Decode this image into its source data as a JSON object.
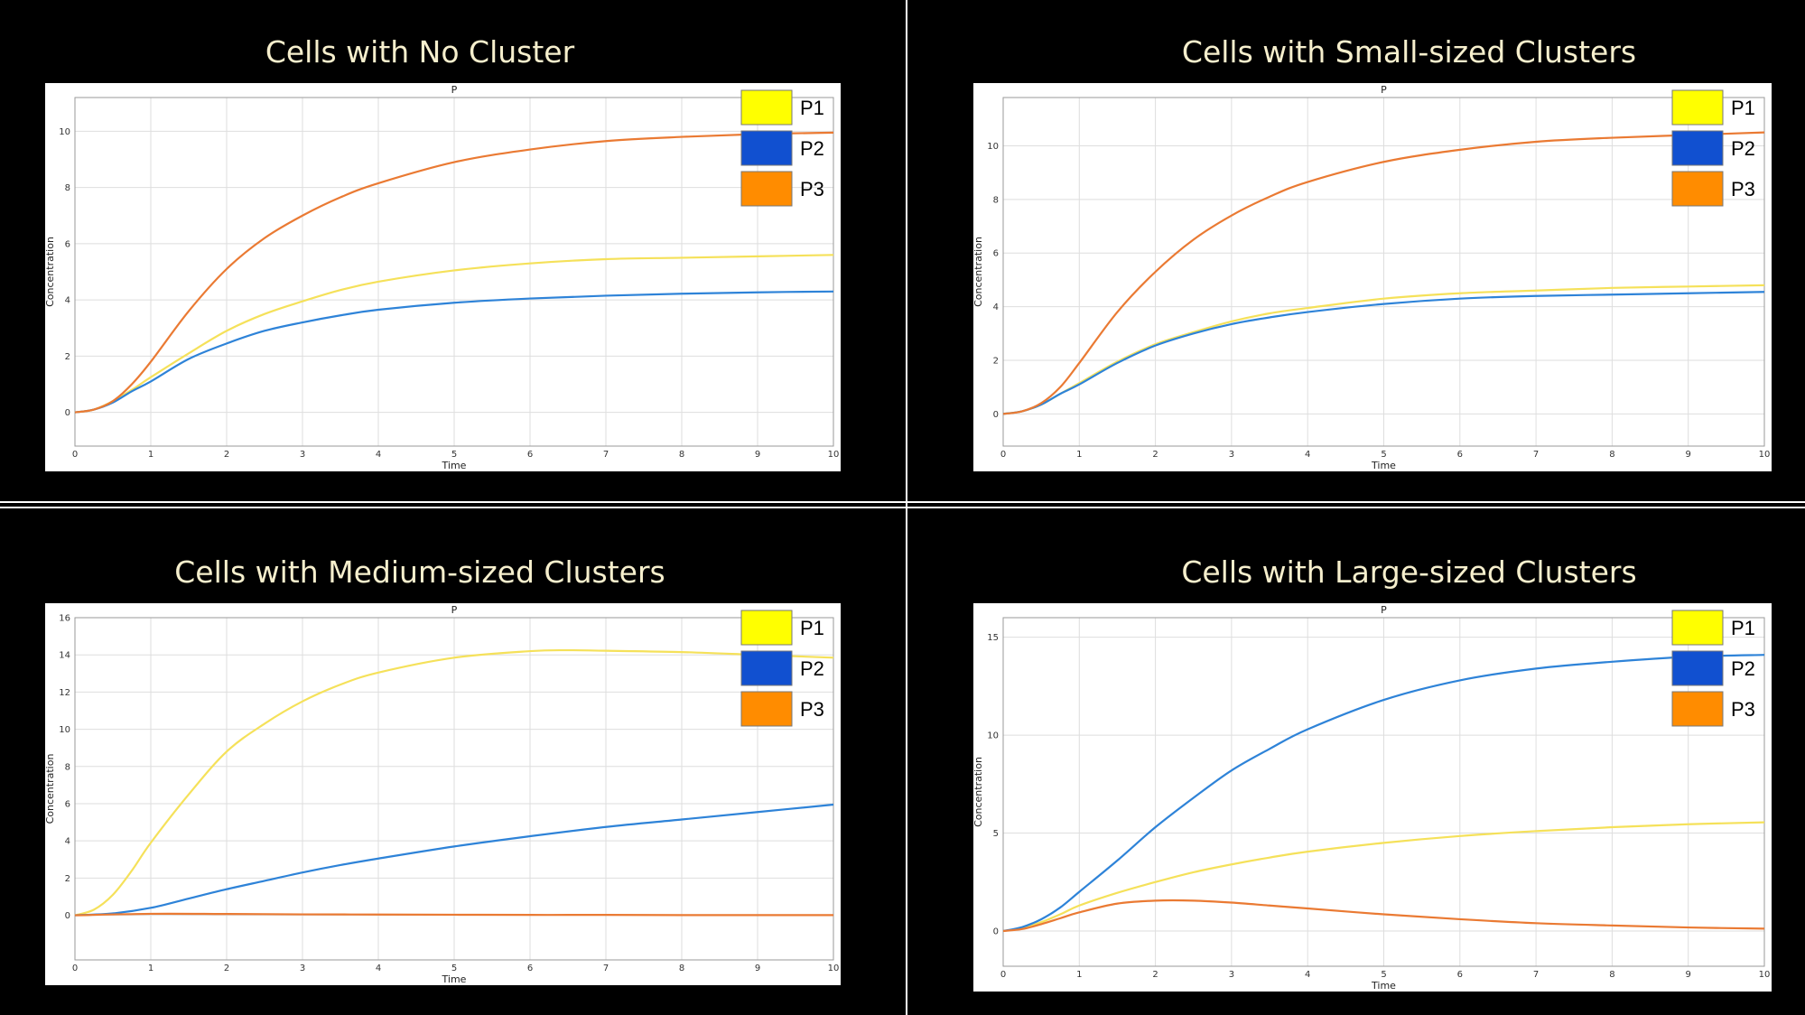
{
  "chart_data": [
    {
      "type": "line",
      "panel_title": "Cells with No Cluster",
      "title": "P",
      "xlabel": "Time",
      "ylabel": "Concentration",
      "xlim": [
        0,
        10
      ],
      "ylim": [
        -1.2,
        11.2
      ],
      "xticks": [
        0,
        1,
        2,
        3,
        4,
        5,
        6,
        7,
        8,
        9,
        10
      ],
      "yticks": [
        0,
        2,
        4,
        6,
        8,
        10
      ],
      "grid": true,
      "legend_position": "top-right",
      "legend": [
        {
          "label": "P1",
          "swatch": "#ffff00"
        },
        {
          "label": "P2",
          "swatch": "#1150d0"
        },
        {
          "label": "P3",
          "swatch": "#ff8c00"
        }
      ],
      "series": [
        {
          "name": "P1",
          "color": "#f5e15a",
          "x": [
            0,
            0.25,
            0.5,
            0.75,
            1,
            1.5,
            2,
            2.5,
            3,
            3.5,
            4,
            5,
            6,
            7,
            8,
            9,
            10
          ],
          "y": [
            0,
            0.1,
            0.4,
            0.8,
            1.25,
            2.1,
            2.9,
            3.5,
            3.95,
            4.35,
            4.65,
            5.05,
            5.3,
            5.45,
            5.5,
            5.55,
            5.6
          ]
        },
        {
          "name": "P2",
          "color": "#2e83d8",
          "x": [
            0,
            0.25,
            0.5,
            0.75,
            1,
            1.5,
            2,
            2.5,
            3,
            3.5,
            4,
            5,
            6,
            7,
            8,
            9,
            10
          ],
          "y": [
            0,
            0.1,
            0.35,
            0.75,
            1.1,
            1.9,
            2.45,
            2.9,
            3.2,
            3.45,
            3.65,
            3.9,
            4.05,
            4.15,
            4.22,
            4.27,
            4.3
          ]
        },
        {
          "name": "P3",
          "color": "#ea7a33",
          "x": [
            0,
            0.25,
            0.5,
            0.75,
            1,
            1.5,
            2,
            2.5,
            3,
            3.5,
            4,
            5,
            6,
            7,
            8,
            9,
            10
          ],
          "y": [
            0,
            0.1,
            0.4,
            1.0,
            1.8,
            3.6,
            5.1,
            6.2,
            7.0,
            7.65,
            8.15,
            8.9,
            9.35,
            9.65,
            9.8,
            9.9,
            9.95
          ]
        }
      ]
    },
    {
      "type": "line",
      "panel_title": "Cells with Small-sized Clusters",
      "title": "P",
      "xlabel": "Time",
      "ylabel": "Concentration",
      "xlim": [
        0,
        10
      ],
      "ylim": [
        -1.2,
        11.8
      ],
      "xticks": [
        0,
        1,
        2,
        3,
        4,
        5,
        6,
        7,
        8,
        9,
        10
      ],
      "yticks": [
        0,
        2,
        4,
        6,
        8,
        10
      ],
      "grid": true,
      "legend_position": "top-right",
      "legend": [
        {
          "label": "P1",
          "swatch": "#ffff00"
        },
        {
          "label": "P2",
          "swatch": "#1150d0"
        },
        {
          "label": "P3",
          "swatch": "#ff8c00"
        }
      ],
      "series": [
        {
          "name": "P1",
          "color": "#f5e15a",
          "x": [
            0,
            0.25,
            0.5,
            0.75,
            1,
            1.5,
            2,
            2.5,
            3,
            3.5,
            4,
            5,
            6,
            7,
            8,
            9,
            10
          ],
          "y": [
            0,
            0.1,
            0.35,
            0.75,
            1.15,
            1.95,
            2.6,
            3.05,
            3.45,
            3.75,
            3.95,
            4.3,
            4.5,
            4.6,
            4.7,
            4.75,
            4.8
          ]
        },
        {
          "name": "P2",
          "color": "#2e83d8",
          "x": [
            0,
            0.25,
            0.5,
            0.75,
            1,
            1.5,
            2,
            2.5,
            3,
            3.5,
            4,
            5,
            6,
            7,
            8,
            9,
            10
          ],
          "y": [
            0,
            0.1,
            0.35,
            0.75,
            1.1,
            1.9,
            2.55,
            3.0,
            3.35,
            3.6,
            3.8,
            4.1,
            4.3,
            4.4,
            4.45,
            4.5,
            4.55
          ]
        },
        {
          "name": "P3",
          "color": "#ea7a33",
          "x": [
            0,
            0.25,
            0.5,
            0.75,
            1,
            1.5,
            2,
            2.5,
            3,
            3.5,
            4,
            5,
            6,
            7,
            8,
            9,
            10
          ],
          "y": [
            0,
            0.1,
            0.4,
            1.0,
            1.9,
            3.8,
            5.3,
            6.5,
            7.4,
            8.1,
            8.65,
            9.4,
            9.85,
            10.15,
            10.3,
            10.4,
            10.5
          ]
        }
      ]
    },
    {
      "type": "line",
      "panel_title": "Cells with Medium-sized Clusters",
      "title": "P",
      "xlabel": "Time",
      "ylabel": "Concentration",
      "xlim": [
        0,
        10
      ],
      "ylim": [
        -2.4,
        16
      ],
      "xticks": [
        0,
        1,
        2,
        3,
        4,
        5,
        6,
        7,
        8,
        9,
        10
      ],
      "yticks": [
        0,
        2,
        4,
        6,
        8,
        10,
        12,
        14,
        16
      ],
      "grid": true,
      "legend_position": "top-right",
      "legend": [
        {
          "label": "P1",
          "swatch": "#ffff00"
        },
        {
          "label": "P2",
          "swatch": "#1150d0"
        },
        {
          "label": "P3",
          "swatch": "#ff8c00"
        }
      ],
      "series": [
        {
          "name": "P1",
          "color": "#f5e15a",
          "x": [
            0,
            0.25,
            0.5,
            0.75,
            1,
            1.5,
            2,
            2.5,
            3,
            3.5,
            4,
            5,
            6,
            6.5,
            7,
            8,
            9,
            10
          ],
          "y": [
            0,
            0.3,
            1.1,
            2.4,
            3.9,
            6.5,
            8.8,
            10.3,
            11.5,
            12.4,
            13.05,
            13.85,
            14.2,
            14.25,
            14.22,
            14.15,
            14.0,
            13.85
          ]
        },
        {
          "name": "P2",
          "color": "#2e83d8",
          "x": [
            0,
            0.5,
            1,
            1.5,
            2,
            2.5,
            3,
            3.5,
            4,
            5,
            6,
            7,
            8,
            9,
            10
          ],
          "y": [
            0,
            0.1,
            0.4,
            0.9,
            1.4,
            1.85,
            2.3,
            2.7,
            3.05,
            3.7,
            4.25,
            4.75,
            5.15,
            5.55,
            5.95
          ]
        },
        {
          "name": "P3",
          "color": "#ea7a33",
          "x": [
            0,
            1,
            2,
            3,
            4,
            5,
            6,
            7,
            8,
            9,
            10
          ],
          "y": [
            0,
            0.08,
            0.07,
            0.05,
            0.04,
            0.03,
            0.02,
            0.02,
            0.01,
            0.01,
            0.01
          ]
        }
      ]
    },
    {
      "type": "line",
      "panel_title": "Cells with Large-sized Clusters",
      "title": "P",
      "xlabel": "Time",
      "ylabel": "Concentration",
      "xlim": [
        0,
        10
      ],
      "ylim": [
        -1.8,
        16
      ],
      "xticks": [
        0,
        1,
        2,
        3,
        4,
        5,
        6,
        7,
        8,
        9,
        10
      ],
      "yticks": [
        0,
        5,
        10,
        15
      ],
      "grid": true,
      "legend_position": "top-right",
      "legend": [
        {
          "label": "P1",
          "swatch": "#ffff00"
        },
        {
          "label": "P2",
          "swatch": "#1150d0"
        },
        {
          "label": "P3",
          "swatch": "#ff8c00"
        }
      ],
      "series": [
        {
          "name": "P1",
          "color": "#f5e15a",
          "x": [
            0,
            0.25,
            0.5,
            0.75,
            1,
            1.5,
            2,
            2.5,
            3,
            3.5,
            4,
            5,
            6,
            7,
            8,
            9,
            10
          ],
          "y": [
            0,
            0.15,
            0.45,
            0.85,
            1.3,
            1.95,
            2.5,
            3.0,
            3.4,
            3.75,
            4.05,
            4.5,
            4.85,
            5.1,
            5.3,
            5.45,
            5.55
          ]
        },
        {
          "name": "P2",
          "color": "#2e83d8",
          "x": [
            0,
            0.25,
            0.5,
            0.75,
            1,
            1.5,
            2,
            2.5,
            3,
            3.5,
            4,
            5,
            6,
            7,
            8,
            9,
            10
          ],
          "y": [
            0,
            0.2,
            0.6,
            1.2,
            2.0,
            3.6,
            5.3,
            6.8,
            8.2,
            9.3,
            10.3,
            11.8,
            12.8,
            13.4,
            13.75,
            14.0,
            14.1
          ]
        },
        {
          "name": "P3",
          "color": "#ea7a33",
          "x": [
            0,
            0.25,
            0.5,
            0.75,
            1,
            1.5,
            2,
            2.5,
            3,
            3.5,
            4,
            5,
            6,
            7,
            8,
            9,
            10
          ],
          "y": [
            0,
            0.1,
            0.35,
            0.65,
            0.95,
            1.4,
            1.55,
            1.55,
            1.45,
            1.3,
            1.15,
            0.85,
            0.6,
            0.4,
            0.28,
            0.18,
            0.12
          ]
        }
      ]
    }
  ]
}
